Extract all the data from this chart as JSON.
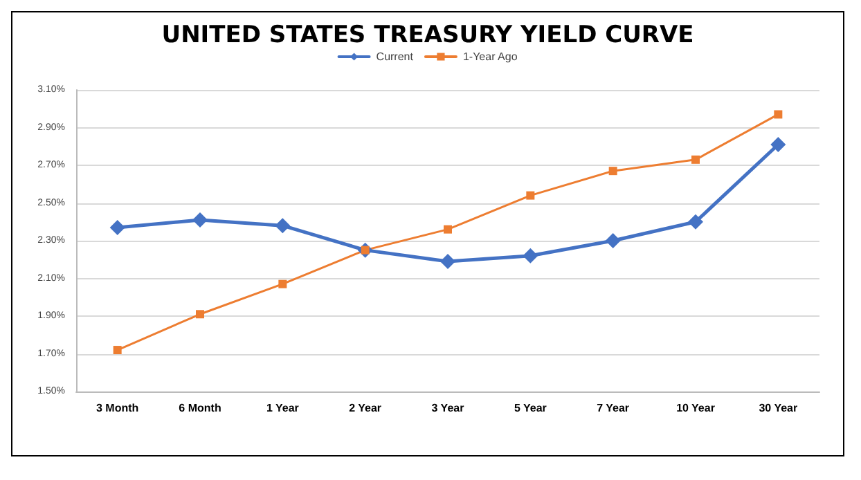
{
  "chart_data": {
    "type": "line",
    "title": "UNITED STATES TREASURY YIELD CURVE",
    "categories": [
      "3 Month",
      "6 Month",
      "1 Year",
      "2 Year",
      "3 Year",
      "5 Year",
      "7 Year",
      "10 Year",
      "30 Year"
    ],
    "series": [
      {
        "name": "Current",
        "color": "#4472c4",
        "marker": "diamond",
        "values": [
          2.37,
          2.41,
          2.38,
          2.25,
          2.19,
          2.22,
          2.3,
          2.4,
          2.81
        ]
      },
      {
        "name": "1-Year Ago",
        "color": "#ed7d31",
        "marker": "square",
        "values": [
          1.72,
          1.91,
          2.07,
          2.25,
          2.36,
          2.54,
          2.67,
          2.73,
          2.97
        ]
      }
    ],
    "ylim": [
      1.5,
      3.1
    ],
    "yticks": [
      {
        "value": 1.5,
        "label": "1.50%"
      },
      {
        "value": 1.7,
        "label": "1.70%"
      },
      {
        "value": 1.9,
        "label": "1.90%"
      },
      {
        "value": 2.1,
        "label": "2.10%"
      },
      {
        "value": 2.3,
        "label": "2.30%"
      },
      {
        "value": 2.5,
        "label": "2.50%"
      },
      {
        "value": 2.7,
        "label": "2.70%"
      },
      {
        "value": 2.9,
        "label": "2.90%"
      },
      {
        "value": 3.1,
        "label": "3.10%"
      }
    ],
    "grid": "y",
    "legend": "top",
    "line_style": "solid"
  }
}
